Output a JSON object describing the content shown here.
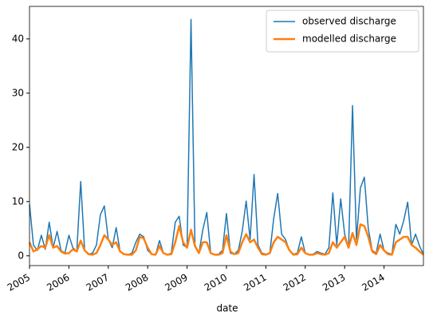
{
  "chart_data": {
    "type": "line",
    "x_label": "date",
    "x": [
      2005,
      2005.1,
      2005.2,
      2005.3,
      2005.4,
      2005.5,
      2005.6,
      2005.7,
      2005.8,
      2005.9,
      2006,
      2006.1,
      2006.2,
      2006.3,
      2006.4,
      2006.5,
      2006.6,
      2006.7,
      2006.8,
      2006.9,
      2007,
      2007.1,
      2007.2,
      2007.3,
      2007.4,
      2007.5,
      2007.6,
      2007.7,
      2007.8,
      2007.9,
      2008,
      2008.1,
      2008.2,
      2008.3,
      2008.4,
      2008.5,
      2008.6,
      2008.7,
      2008.8,
      2008.9,
      2009,
      2009.1,
      2009.2,
      2009.3,
      2009.4,
      2009.5,
      2009.6,
      2009.7,
      2009.8,
      2009.9,
      2010,
      2010.1,
      2010.2,
      2010.3,
      2010.4,
      2010.5,
      2010.6,
      2010.7,
      2010.8,
      2010.9,
      2011,
      2011.1,
      2011.2,
      2011.3,
      2011.4,
      2011.5,
      2011.6,
      2011.7,
      2011.8,
      2011.9,
      2012,
      2012.1,
      2012.2,
      2012.3,
      2012.4,
      2012.5,
      2012.6,
      2012.7,
      2012.8,
      2012.9,
      2013,
      2013.1,
      2013.2,
      2013.3,
      2013.4,
      2013.5,
      2013.6,
      2013.7,
      2013.8,
      2013.9,
      2014,
      2014.1,
      2014.2,
      2014.3,
      2014.4,
      2014.5,
      2014.6,
      2014.7,
      2014.8,
      2014.9,
      2015
    ],
    "series": [
      {
        "name": "observed discharge",
        "color": "#1f77b4",
        "width": 1.5,
        "values": [
          9.5,
          2,
          1,
          3.8,
          1.2,
          6.2,
          1.5,
          4.5,
          1,
          0.5,
          3.8,
          1.5,
          0.8,
          13.7,
          1,
          0.3,
          0.5,
          2,
          7.6,
          9.2,
          3,
          1.5,
          5.2,
          0.8,
          0.3,
          0.2,
          0.5,
          2.5,
          4,
          3.5,
          1,
          0.3,
          0.2,
          2.8,
          0.5,
          0.2,
          0.5,
          6.2,
          7.3,
          2,
          1.5,
          43.6,
          2,
          0.5,
          4.8,
          8,
          0.5,
          0.2,
          0.3,
          1,
          7.8,
          0.5,
          0.3,
          1,
          4.5,
          10.1,
          3,
          15,
          2,
          0.5,
          0.3,
          0.5,
          6.9,
          11.5,
          4,
          3,
          1,
          0.3,
          0.5,
          3.5,
          0.5,
          0.2,
          0.3,
          0.8,
          0.5,
          0.3,
          1.5,
          11.6,
          2,
          10.5,
          4,
          1.5,
          27.7,
          3,
          12.5,
          14.5,
          5,
          1,
          0.5,
          4,
          1,
          0.5,
          0.3,
          5.8,
          4,
          6.5,
          9.9,
          2,
          4,
          1.8,
          0.3
        ]
      },
      {
        "name": "modelled discharge",
        "color": "#ff7f0e",
        "width": 2.5,
        "values": [
          2.5,
          0.8,
          1.2,
          1.8,
          1.5,
          3.8,
          1.5,
          1.8,
          0.8,
          0.4,
          0.5,
          1.2,
          0.8,
          2.8,
          1,
          0.3,
          0.2,
          0.5,
          2,
          3.8,
          3,
          2,
          2.5,
          0.8,
          0.3,
          0.2,
          0.2,
          1,
          3.5,
          3.2,
          1.5,
          0.3,
          0.2,
          1.8,
          0.5,
          0.2,
          0.3,
          2.5,
          5.5,
          2.5,
          1.5,
          4.8,
          1.8,
          0.5,
          2.5,
          2.5,
          0.5,
          0.2,
          0.2,
          0.5,
          3.8,
          0.8,
          0.3,
          0.5,
          2.5,
          4,
          2.5,
          3,
          1.5,
          0.3,
          0.2,
          0.5,
          2.5,
          3.5,
          3,
          2.5,
          1,
          0.2,
          0.3,
          1.5,
          0.5,
          0.2,
          0.2,
          0.5,
          0.3,
          0.2,
          0.5,
          2.5,
          1.5,
          2.5,
          3.5,
          1.5,
          4.2,
          2,
          5.8,
          5.5,
          3.5,
          0.8,
          0.3,
          2,
          1,
          0.3,
          0.2,
          2.5,
          3,
          3.5,
          3.5,
          2,
          1.5,
          0.8,
          0.2
        ]
      }
    ],
    "xlim": [
      2005,
      2015
    ],
    "xticks": [
      2005,
      2006,
      2007,
      2008,
      2009,
      2010,
      2011,
      2012,
      2013,
      2014
    ],
    "ylim": [
      -1.8,
      46
    ],
    "yticks": [
      0,
      10,
      20,
      30,
      40
    ],
    "legend": "upper right"
  }
}
